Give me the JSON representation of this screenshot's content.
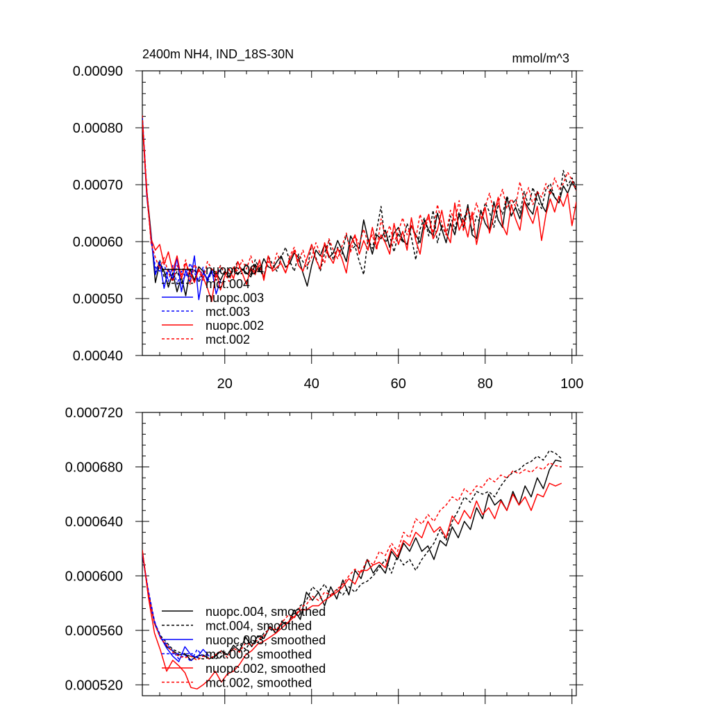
{
  "chart_data": [
    {
      "type": "line",
      "title": "2400m NH4, IND_18S-30N",
      "units": "mmol/m^3",
      "xlim": [
        1,
        101
      ],
      "ylim": [
        0.0004,
        0.0009
      ],
      "x_ticks": [
        20,
        40,
        60,
        80,
        100
      ],
      "x_tick_labels": [
        "20",
        "40",
        "60",
        "80",
        "100"
      ],
      "y_ticks": [
        0.0004,
        0.0005,
        0.0006,
        0.0007,
        0.0008,
        0.0009
      ],
      "y_tick_labels": [
        "0.00040",
        "0.00050",
        "0.00060",
        "0.00070",
        "0.00080",
        "0.00090"
      ],
      "legend_position": "bottom-left, inside",
      "series": [
        {
          "name": "nuopc.004",
          "color": "#000000",
          "dash": "solid",
          "values": [
            0.000812,
            0.00069,
            0.000615,
            0.000528,
            0.000562,
            0.000548,
            0.00052,
            0.000545,
            0.000512,
            0.000538,
            0.000505,
            0.000552,
            0.000532,
            0.000556,
            0.000548,
            0.000532,
            0.000552,
            0.000545,
            0.000532,
            0.000548,
            0.000538,
            0.000555,
            0.000542,
            0.000552,
            0.000545,
            0.000538,
            0.00056,
            0.000548,
            0.00057,
            0.000556,
            0.000552,
            0.000565,
            0.000575,
            0.000555,
            0.000562,
            0.00058,
            0.000572,
            0.000545,
            0.000522,
            0.000558,
            0.000585,
            0.000575,
            0.000595,
            0.000572,
            0.00058,
            0.000602,
            0.000585,
            0.000565,
            0.00061,
            0.000595,
            0.000588,
            0.000638,
            0.000605,
            0.000578,
            0.000612,
            0.000605,
            0.00062,
            0.00059,
            0.000615,
            0.000625,
            0.000602,
            0.000595,
            0.000628,
            0.000612,
            0.000598,
            0.000638,
            0.00062,
            0.00061,
            0.00065,
            0.000622,
            0.000598,
            0.000632,
            0.000612,
            0.000648,
            0.000625,
            0.000665,
            0.000612,
            0.000605,
            0.000655,
            0.000632,
            0.00062,
            0.00067,
            0.000638,
            0.000625,
            0.000678,
            0.000645,
            0.00066,
            0.00064,
            0.000672,
            0.000658,
            0.000648,
            0.000688,
            0.000665,
            0.000652,
            0.000692,
            0.000678,
            0.000668,
            0.000698,
            0.000685,
            0.000705,
            0.00069
          ]
        },
        {
          "name": "mct.004",
          "color": "#000000",
          "dash": "dashed",
          "values": [
            0.000818,
            0.000685,
            0.000605,
            0.000545,
            0.000568,
            0.000538,
            0.00055,
            0.000532,
            0.000548,
            0.000528,
            0.000542,
            0.000538,
            0.000552,
            0.000528,
            0.000545,
            0.000535,
            0.000548,
            0.000532,
            0.000558,
            0.000542,
            0.000535,
            0.000552,
            0.000565,
            0.000548,
            0.000562,
            0.000542,
            0.000568,
            0.000552,
            0.000538,
            0.000575,
            0.00056,
            0.000548,
            0.000572,
            0.00059,
            0.000565,
            0.000548,
            0.000578,
            0.000565,
            0.000552,
            0.000595,
            0.000572,
            0.000548,
            0.00058,
            0.000602,
            0.000568,
            0.00059,
            0.000578,
            0.000612,
            0.000585,
            0.000592,
            0.000565,
            0.000542,
            0.000605,
            0.000588,
            0.00062,
            0.000662,
            0.000598,
            0.00061,
            0.000582,
            0.000615,
            0.000598,
            0.000632,
            0.000608,
            0.000568,
            0.000622,
            0.000642,
            0.00061,
            0.000655,
            0.000598,
            0.000628,
            0.000612,
            0.000645,
            0.000622,
            0.000652,
            0.000638,
            0.00066,
            0.000615,
            0.000645,
            0.00063,
            0.000668,
            0.000652,
            0.000625,
            0.000665,
            0.000648,
            0.00068,
            0.000662,
            0.000675,
            0.00065,
            0.000688,
            0.000662,
            0.000695,
            0.000672,
            0.000658,
            0.000692,
            0.000702,
            0.000678,
            0.000668,
            0.000725,
            0.000698,
            0.000712,
            0.000695
          ]
        },
        {
          "name": "nuopc.003",
          "color": "#0000ff",
          "dash": "solid",
          "values": [
            0.000815,
            0.00068,
            0.00061,
            0.000542,
            0.000565,
            0.000518,
            0.000552,
            0.000535,
            0.000572,
            0.000512,
            0.00055,
            0.000528,
            0.000575,
            0.000498,
            0.000545,
            0.000535,
            0.000552,
            0.000508,
            0.000532
          ]
        },
        {
          "name": "mct.003",
          "color": "#0000ff",
          "dash": "dashed",
          "values": [
            0.00082,
            0.000692,
            0.000602,
            0.000555,
            0.000548,
            0.000562,
            0.00053,
            0.000558,
            0.000525,
            0.000548,
            0.000538,
            0.000562,
            0.000545,
            0.000532,
            0.000555,
            0.000528,
            0.000548,
            0.000538,
            0.00055
          ]
        },
        {
          "name": "nuopc.002",
          "color": "#ff0000",
          "dash": "solid",
          "values": [
            0.00081,
            0.000685,
            0.000605,
            0.000585,
            0.000595,
            0.00056,
            0.000582,
            0.000548,
            0.000575,
            0.000535,
            0.000562,
            0.000545,
            0.000528,
            0.000552,
            0.000538,
            0.000518,
            0.000495,
            0.000548,
            0.000515,
            0.00054,
            0.000552,
            0.000535,
            0.000565,
            0.000545,
            0.000525,
            0.000555,
            0.000542,
            0.000568,
            0.000532,
            0.000575,
            0.000548,
            0.000555,
            0.000562,
            0.000545,
            0.000568,
            0.000585,
            0.000558,
            0.000548,
            0.000572,
            0.000595,
            0.000568,
            0.000552,
            0.000598,
            0.000575,
            0.000562,
            0.000588,
            0.00057,
            0.000545,
            0.000595,
            0.000612,
            0.000578,
            0.000602,
            0.000585,
            0.000625,
            0.00059,
            0.000612,
            0.000598,
            0.000578,
            0.000632,
            0.000595,
            0.000618,
            0.000585,
            0.000642,
            0.000602,
            0.000578,
            0.000628,
            0.000648,
            0.000605,
            0.00062,
            0.000655,
            0.000615,
            0.000598,
            0.000668,
            0.00062,
            0.000638,
            0.000608,
            0.000652,
            0.000595,
            0.000632,
            0.00066,
            0.000615,
            0.000645,
            0.000678,
            0.000628,
            0.000612,
            0.000665,
            0.00064,
            0.00062,
            0.000672,
            0.000648,
            0.000632,
            0.000662,
            0.000602,
            0.000648,
            0.000675,
            0.000652,
            0.00068,
            0.000662,
            0.000685,
            0.000628,
            0.00067
          ]
        },
        {
          "name": "mct.002",
          "color": "#ff0000",
          "dash": "dashed",
          "values": [
            0.000822,
            0.000695,
            0.000598,
            0.000572,
            0.000552,
            0.000572,
            0.000545,
            0.00053,
            0.000558,
            0.000542,
            0.000568,
            0.000525,
            0.00056,
            0.000548,
            0.000532,
            0.000565,
            0.000552,
            0.000538,
            0.000558,
            0.000545,
            0.00053,
            0.000555,
            0.000548,
            0.000568,
            0.000552,
            0.000575,
            0.000545,
            0.000558,
            0.000538,
            0.000565,
            0.000552,
            0.00058,
            0.000562,
            0.000545,
            0.000575,
            0.00059,
            0.000565,
            0.000585,
            0.000558,
            0.000572,
            0.000598,
            0.000578,
            0.000562,
            0.000605,
            0.000585,
            0.00057,
            0.000592,
            0.000615,
            0.000582,
            0.00061,
            0.000595,
            0.000622,
            0.000598,
            0.000612,
            0.000585,
            0.00064,
            0.000608,
            0.000628,
            0.000598,
            0.000618,
            0.000642,
            0.000612,
            0.00063,
            0.000605,
            0.000648,
            0.000622,
            0.000642,
            0.000615,
            0.000665,
            0.000632,
            0.000612,
            0.000655,
            0.000635,
            0.000672,
            0.000618,
            0.000658,
            0.000638,
            0.000668,
            0.00064,
            0.000662,
            0.000685,
            0.000652,
            0.000668,
            0.000692,
            0.000658,
            0.000675,
            0.000662,
            0.000705,
            0.000672,
            0.000695,
            0.000665,
            0.000688,
            0.000678,
            0.000702,
            0.000682,
            0.000712,
            0.000692,
            0.000702,
            0.000722,
            0.000708,
            0.00069
          ]
        }
      ]
    },
    {
      "type": "line",
      "title": "",
      "xlim": [
        1,
        101
      ],
      "ylim": [
        0.000512,
        0.00072
      ],
      "x_ticks": [
        20,
        40,
        60,
        80,
        100
      ],
      "y_ticks": [
        0.00052,
        0.00056,
        0.0006,
        0.00064,
        0.00068,
        0.00072
      ],
      "y_tick_labels": [
        "0.000520",
        "0.000560",
        "0.000600",
        "0.000640",
        "0.000680",
        "0.000720"
      ],
      "legend_position": "bottom-left, inside",
      "series": [
        {
          "name": "nuopc.004, smoothed",
          "color": "#000000",
          "dash": "solid",
          "values": [
            0.000618,
            0.000586,
            0.000565,
            0.000555,
            0.000548,
            0.000545,
            0.000542,
            0.000543,
            0.000538,
            0.000541,
            0.000542,
            0.000539,
            0.000541,
            0.000545,
            0.000542,
            0.000549,
            0.000545,
            0.000555,
            0.000548,
            0.000556,
            0.000554,
            0.000563,
            0.000558,
            0.000566,
            0.000565,
            0.000575,
            0.000568,
            0.000588,
            0.000582,
            0.000588,
            0.000578,
            0.000592,
            0.000583,
            0.000597,
            0.000586,
            0.000604,
            0.000598,
            0.000612,
            0.000602,
            0.000608,
            0.000602,
            0.000618,
            0.000612,
            0.000624,
            0.000618,
            0.000628,
            0.000618,
            0.000622,
            0.000612,
            0.000626,
            0.000622,
            0.000636,
            0.000628,
            0.00064,
            0.000634,
            0.00065,
            0.000642,
            0.00066,
            0.000652,
            0.000656,
            0.000648,
            0.000662,
            0.000652,
            0.000666,
            0.000658,
            0.000672,
            0.000664,
            0.000678,
            0.000685,
            0.000684
          ]
        },
        {
          "name": "mct.004, smoothed",
          "color": "#000000",
          "dash": "dashed",
          "values": [
            0.000615,
            0.000588,
            0.000566,
            0.000556,
            0.000551,
            0.000546,
            0.000544,
            0.000542,
            0.000541,
            0.00054,
            0.000539,
            0.00054,
            0.000539,
            0.000541,
            0.000543,
            0.000547,
            0.00055,
            0.000546,
            0.000553,
            0.000551,
            0.000558,
            0.000561,
            0.000558,
            0.000567,
            0.000565,
            0.000572,
            0.000578,
            0.000582,
            0.000592,
            0.000588,
            0.000594,
            0.000585,
            0.00059,
            0.000586,
            0.000592,
            0.000588,
            0.000594,
            0.000596,
            0.0006,
            0.000606,
            0.000612,
            0.000602,
            0.000615,
            0.000608,
            0.000612,
            0.000604,
            0.000612,
            0.000618,
            0.000624,
            0.000634,
            0.000626,
            0.00064,
            0.000648,
            0.000658,
            0.000654,
            0.000662,
            0.00066,
            0.000662,
            0.000658,
            0.000666,
            0.000672,
            0.000676,
            0.000678,
            0.000682,
            0.000684,
            0.000688,
            0.000685,
            0.000692,
            0.00069,
            0.000686
          ]
        },
        {
          "name": "nuopc.003, smoothed",
          "color": "#0000ff",
          "dash": "solid",
          "values": [
            0.000617,
            0.000585,
            0.000566,
            0.000555,
            0.000547,
            0.000541,
            0.000537,
            0.000548,
            0.000542,
            0.00054,
            0.000546,
            0.000541
          ]
        },
        {
          "name": "mct.003, smoothed",
          "color": "#0000ff",
          "dash": "dashed",
          "values": [
            0.000616,
            0.000589,
            0.000567,
            0.000554,
            0.00055,
            0.000545,
            0.000539,
            0.000542,
            0.000537,
            0.000546,
            0.000541,
            0.000543
          ]
        },
        {
          "name": "nuopc.002, smoothed",
          "color": "#ff0000",
          "dash": "solid",
          "values": [
            0.000619,
            0.000584,
            0.000558,
            0.000545,
            0.00053,
            0.000538,
            0.000534,
            0.000529,
            0.000518,
            0.000517,
            0.00052,
            0.000524,
            0.00053,
            0.000522,
            0.000528,
            0.00053,
            0.000535,
            0.000542,
            0.000545,
            0.00055,
            0.000552,
            0.000555,
            0.000558,
            0.000562,
            0.000566,
            0.00057,
            0.000575,
            0.000575,
            0.000578,
            0.000578,
            0.000582,
            0.000585,
            0.000588,
            0.000592,
            0.000598,
            0.000594,
            0.000604,
            0.000604,
            0.000608,
            0.00061,
            0.000606,
            0.00062,
            0.000614,
            0.000626,
            0.000622,
            0.000632,
            0.000628,
            0.00064,
            0.000632,
            0.000636,
            0.000628,
            0.000644,
            0.000638,
            0.000648,
            0.000642,
            0.000655,
            0.000645,
            0.00065,
            0.000642,
            0.000655,
            0.000648,
            0.00066,
            0.000652,
            0.000658,
            0.000648,
            0.00066,
            0.000658,
            0.000668,
            0.000666,
            0.000668
          ]
        },
        {
          "name": "mct.002, smoothed",
          "color": "#ff0000",
          "dash": "dashed",
          "values": [
            0.000618,
            0.000587,
            0.000565,
            0.000554,
            0.000549,
            0.000544,
            0.000541,
            0.00054,
            0.000541,
            0.000538,
            0.000541,
            0.000539,
            0.000542,
            0.000545,
            0.00054,
            0.000547,
            0.000544,
            0.000551,
            0.000549,
            0.000553,
            0.000556,
            0.000562,
            0.00056,
            0.000566,
            0.000571,
            0.000569,
            0.000577,
            0.000579,
            0.000585,
            0.000582,
            0.000588,
            0.000586,
            0.00059,
            0.000594,
            0.0006,
            0.000605,
            0.000602,
            0.000612,
            0.000608,
            0.000618,
            0.000615,
            0.000624,
            0.000618,
            0.000632,
            0.000628,
            0.000642,
            0.000638,
            0.000645,
            0.00064,
            0.000648,
            0.000652,
            0.000658,
            0.000655,
            0.000664,
            0.00066,
            0.000666,
            0.000665,
            0.000672,
            0.000669,
            0.000674,
            0.000672,
            0.000677,
            0.000675,
            0.000678,
            0.000676,
            0.00068,
            0.000678,
            0.000683,
            0.000681,
            0.00068
          ]
        }
      ]
    }
  ]
}
